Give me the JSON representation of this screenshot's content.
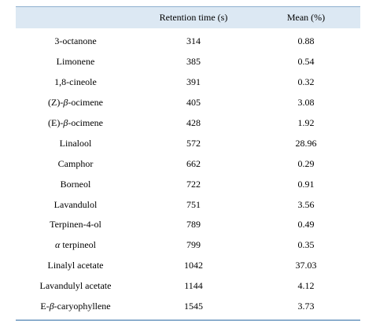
{
  "table": {
    "columns": [
      "",
      "Retention time (s)",
      "Mean (%)"
    ],
    "rows": [
      {
        "compound": "3-octanone",
        "retention": "314",
        "mean": "0.88"
      },
      {
        "compound": "Limonene",
        "retention": "385",
        "mean": "0.54"
      },
      {
        "compound": "1,8-cineole",
        "retention": "391",
        "mean": "0.32"
      },
      {
        "compound": "(Z)-β-ocimene",
        "retention": "405",
        "mean": "3.08"
      },
      {
        "compound": "(E)-β-ocimene",
        "retention": "428",
        "mean": "1.92"
      },
      {
        "compound": "Linalool",
        "retention": "572",
        "mean": "28.96"
      },
      {
        "compound": "Camphor",
        "retention": "662",
        "mean": "0.29"
      },
      {
        "compound": "Borneol",
        "retention": "722",
        "mean": "0.91"
      },
      {
        "compound": "Lavandulol",
        "retention": "751",
        "mean": "3.56"
      },
      {
        "compound": "Terpinen-4-ol",
        "retention": "789",
        "mean": "0.49"
      },
      {
        "compound": "α terpineol",
        "retention": "799",
        "mean": "0.35"
      },
      {
        "compound": "Linalyl acetate",
        "retention": "1042",
        "mean": "37.03"
      },
      {
        "compound": "Lavandulyl acetate",
        "retention": "1144",
        "mean": "4.12"
      },
      {
        "compound": "E-β-caryophyllene",
        "retention": "1545",
        "mean": "3.73"
      }
    ]
  }
}
